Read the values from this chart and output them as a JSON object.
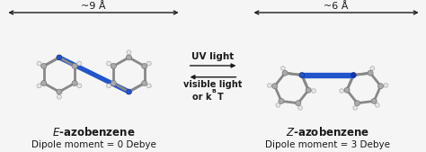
{
  "background_color": "#f5f5f5",
  "left_molecule_label": "$\\mathit{E}$-azobenzene",
  "left_dipole_label": "Dipole moment = 0 Debye",
  "right_molecule_label": "$\\mathit{Z}$-azobenzene",
  "right_dipole_label": "Dipole moment = 3 Debye",
  "left_arrow_label": "~9 Å",
  "right_arrow_label": "~6 Å",
  "forward_arrow_label": "UV light",
  "backward_line1": "visible light",
  "backward_line2_pre": "or k",
  "backward_sub": "B",
  "backward_line2_post": "T",
  "arrow_color": "#1a1a1a",
  "text_color": "#1a1a1a",
  "bond_color": "#888888",
  "atom_color": "#aaaaaa",
  "atom_edge": "#777777",
  "h_atom_color": "#e8e8e8",
  "h_atom_edge": "#aaaaaa",
  "blue_color": "#2255cc",
  "blue_edge": "#1133aa",
  "fig_width": 4.74,
  "fig_height": 1.69,
  "dpi": 100
}
